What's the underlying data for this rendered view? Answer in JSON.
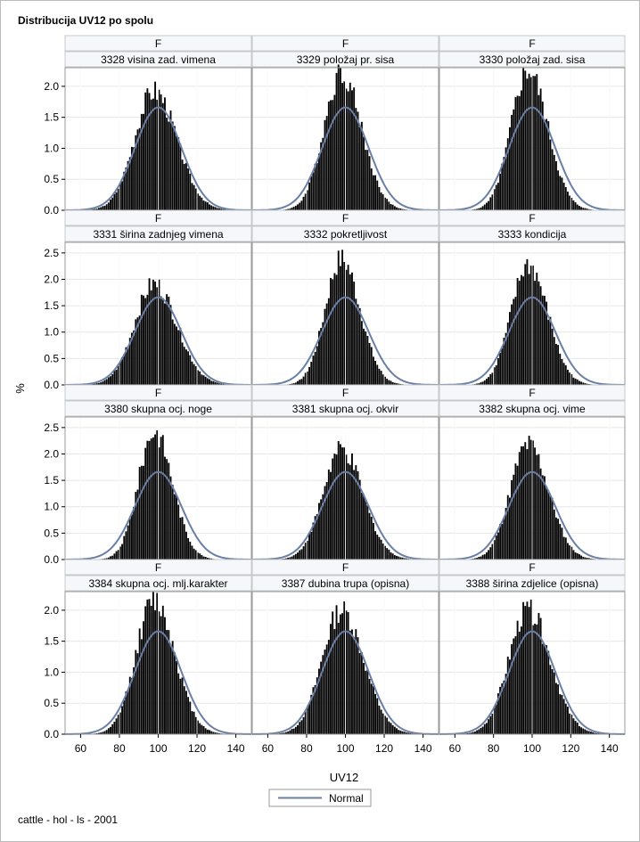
{
  "chart_data": {
    "type": "histogram-panel",
    "title": "Distribucija UV12 po spolu",
    "xlabel": "UV12",
    "ylabel": "%",
    "footnote": "cattle - hol - ls - 2001",
    "legend": {
      "label": "Normal",
      "color": "#6a7fa6",
      "placement": "bottom-center"
    },
    "xlim": [
      52,
      148
    ],
    "xticks": [
      60,
      80,
      100,
      120,
      140
    ],
    "grid": true,
    "normal_peak": 1.66,
    "rows": [
      {
        "ylim": [
          0,
          2.3
        ],
        "yticks": [
          0.0,
          0.5,
          1.0,
          1.5,
          2.0
        ]
      },
      {
        "ylim": [
          0,
          2.7
        ],
        "yticks": [
          0.0,
          0.5,
          1.0,
          1.5,
          2.0,
          2.5
        ]
      },
      {
        "ylim": [
          0,
          2.7
        ],
        "yticks": [
          0.0,
          0.5,
          1.0,
          1.5,
          2.0,
          2.5
        ]
      },
      {
        "ylim": [
          0,
          2.3
        ],
        "yticks": [
          0.0,
          0.5,
          1.0,
          1.5,
          2.0
        ]
      }
    ],
    "panels": [
      {
        "sex": "F",
        "trait": "3328 visina zad. vimena",
        "peak": 1.93,
        "sigma": 10.1
      },
      {
        "sex": "F",
        "trait": "3329 položaj pr. sisa",
        "peak": 2.22,
        "sigma": 9.0
      },
      {
        "sex": "F",
        "trait": "3330 položaj zad. sisa",
        "peak": 2.26,
        "sigma": 8.8
      },
      {
        "sex": "F",
        "trait": "3331 širina zadnjeg vimena",
        "peak": 1.91,
        "sigma": 10.2
      },
      {
        "sex": "F",
        "trait": "3332 pokretljivost",
        "peak": 2.38,
        "sigma": 8.4
      },
      {
        "sex": "F",
        "trait": "3333 kondicija",
        "peak": 2.27,
        "sigma": 8.8
      },
      {
        "sex": "F",
        "trait": "3380 skupna ocj. noge",
        "peak": 2.43,
        "sigma": 8.2
      },
      {
        "sex": "F",
        "trait": "3381 skupna ocj. okvir",
        "peak": 2.07,
        "sigma": 9.6
      },
      {
        "sex": "F",
        "trait": "3382 skupna ocj. vime",
        "peak": 2.18,
        "sigma": 9.2
      },
      {
        "sex": "F",
        "trait": "3384 skupna ocj. mlj.karakter",
        "peak": 2.16,
        "sigma": 9.3
      },
      {
        "sex": "F",
        "trait": "3387 dubina trupa (opisna)",
        "peak": 2.0,
        "sigma": 10.0
      },
      {
        "sex": "F",
        "trait": "3388 širina zdjelice (opisna)",
        "peak": 2.0,
        "sigma": 10.0
      }
    ]
  }
}
